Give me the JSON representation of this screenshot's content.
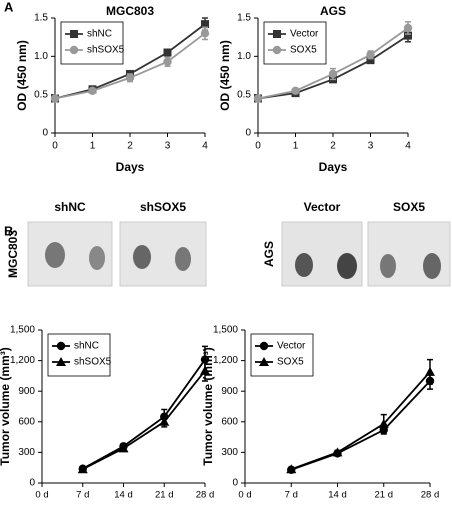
{
  "figure": {
    "panel_a": "A",
    "panel_b": "B",
    "images": [
      {
        "cell_line": "MGC803",
        "groups": [
          "shNC",
          "shSOX5"
        ]
      },
      {
        "cell_line": "AGS",
        "groups": [
          "Vector",
          "SOX5"
        ]
      }
    ]
  },
  "chart_data": [
    {
      "type": "line",
      "title": "MGC803",
      "xlabel": "Days",
      "ylabel": "OD (450 nm)",
      "x": [
        0,
        1,
        2,
        3,
        4
      ],
      "xlim": [
        0,
        4
      ],
      "xticks": [
        0,
        1,
        2,
        3,
        4
      ],
      "ylim": [
        0,
        1.5
      ],
      "yticks": [
        0,
        0.5,
        {
          "value": 1,
          "label": "1.0"
        },
        1.5
      ],
      "legend": "upper left",
      "series": [
        {
          "name": "shNC",
          "color": "#333333",
          "marker": "square",
          "values": [
            0.45,
            0.57,
            0.77,
            1.05,
            1.42
          ],
          "errors": [
            0.02,
            0.03,
            0.04,
            0.04,
            0.08
          ]
        },
        {
          "name": "shSOX5",
          "color": "#999999",
          "marker": "circle",
          "values": [
            0.45,
            0.55,
            0.72,
            0.93,
            1.3
          ],
          "errors": [
            0.02,
            0.03,
            0.05,
            0.06,
            0.08
          ]
        }
      ]
    },
    {
      "type": "line",
      "title": "AGS",
      "xlabel": "Days",
      "ylabel": "OD (450 nm)",
      "x": [
        0,
        1,
        2,
        3,
        4
      ],
      "xlim": [
        0,
        4
      ],
      "xticks": [
        0,
        1,
        2,
        3,
        4
      ],
      "ylim": [
        0,
        1.5
      ],
      "yticks": [
        0,
        0.5,
        {
          "value": 1,
          "label": "1.0"
        },
        1.5
      ],
      "legend": "upper left",
      "series": [
        {
          "name": "Vector",
          "color": "#333333",
          "marker": "square",
          "values": [
            0.45,
            0.52,
            0.7,
            0.95,
            1.27
          ],
          "errors": [
            0.02,
            0.03,
            0.04,
            0.04,
            0.08
          ]
        },
        {
          "name": "SOX5",
          "color": "#999999",
          "marker": "circle",
          "values": [
            0.45,
            0.55,
            0.77,
            1.02,
            1.37
          ],
          "errors": [
            0.02,
            0.03,
            0.07,
            0.05,
            0.08
          ]
        }
      ]
    },
    {
      "type": "line",
      "xlabel": null,
      "ylabel": "Tumor volume (mm³)",
      "categories": [
        "0 d",
        "7 d",
        "14 d",
        "21 d",
        "28 d"
      ],
      "ylim": [
        0,
        1500
      ],
      "yticks": [
        0,
        300,
        600,
        900,
        {
          "value": 1200,
          "label": "1,200"
        },
        {
          "value": 1500,
          "label": "1,500"
        }
      ],
      "legend": "upper left",
      "series": [
        {
          "name": "shNC",
          "color": "#000000",
          "marker": "circle",
          "values": [
            null,
            140,
            360,
            650,
            1210
          ],
          "errors": [
            null,
            15,
            20,
            70,
            130
          ]
        },
        {
          "name": "shSOX5",
          "color": "#000000",
          "marker": "triangle",
          "values": [
            null,
            135,
            340,
            600,
            1100
          ],
          "errors": [
            null,
            15,
            20,
            50,
            100
          ]
        }
      ]
    },
    {
      "type": "line",
      "xlabel": null,
      "ylabel": "Tumor volume (mm³)",
      "categories": [
        "0 d",
        "7 d",
        "14 d",
        "21 d",
        "28 d"
      ],
      "ylim": [
        0,
        1500
      ],
      "yticks": [
        0,
        300,
        600,
        900,
        {
          "value": 1200,
          "label": "1,200"
        },
        {
          "value": 1500,
          "label": "1,500"
        }
      ],
      "legend": "upper left",
      "series": [
        {
          "name": "Vector",
          "color": "#000000",
          "marker": "circle",
          "values": [
            null,
            130,
            290,
            520,
            1000
          ],
          "errors": [
            null,
            15,
            20,
            40,
            80
          ]
        },
        {
          "name": "SOX5",
          "color": "#000000",
          "marker": "triangle",
          "values": [
            null,
            135,
            300,
            580,
            1090
          ],
          "errors": [
            null,
            15,
            20,
            90,
            120
          ]
        }
      ]
    }
  ]
}
